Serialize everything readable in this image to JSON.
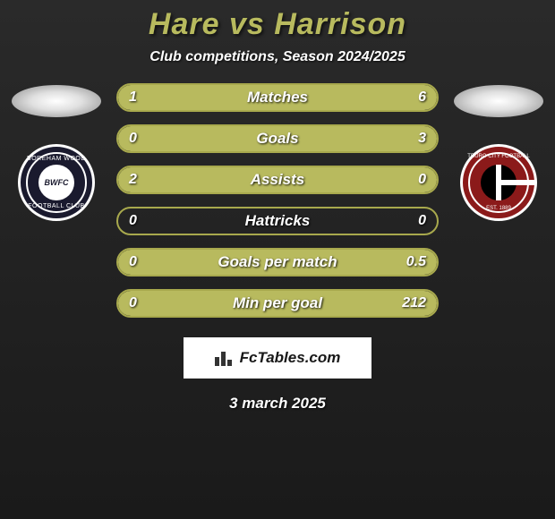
{
  "title": "Hare vs Harrison",
  "subtitle": "Club competitions, Season 2024/2025",
  "left_club": {
    "name": "Boreham Wood",
    "text_top": "BOREHAM WOOD",
    "text_bottom": "FOOTBALL CLUB",
    "inner_text": "BWFC"
  },
  "right_club": {
    "name": "Truro City",
    "text_top": "TRURO CITY FOOTBALL",
    "text_bottom": "EST. 1889"
  },
  "bar_border_color": "#a8a94d",
  "fill_color": "#b8ba5e",
  "stats": [
    {
      "label": "Matches",
      "left_val": "1",
      "right_val": "6",
      "left_pct": 14,
      "right_pct": 86
    },
    {
      "label": "Goals",
      "left_val": "0",
      "right_val": "3",
      "left_pct": 0,
      "right_pct": 100
    },
    {
      "label": "Assists",
      "left_val": "2",
      "right_val": "0",
      "left_pct": 100,
      "right_pct": 0
    },
    {
      "label": "Hattricks",
      "left_val": "0",
      "right_val": "0",
      "left_pct": 0,
      "right_pct": 0
    },
    {
      "label": "Goals per match",
      "left_val": "0",
      "right_val": "0.5",
      "left_pct": 0,
      "right_pct": 100
    },
    {
      "label": "Min per goal",
      "left_val": "0",
      "right_val": "212",
      "left_pct": 0,
      "right_pct": 100
    }
  ],
  "attribution": "FcTables.com",
  "date": "3 march 2025"
}
